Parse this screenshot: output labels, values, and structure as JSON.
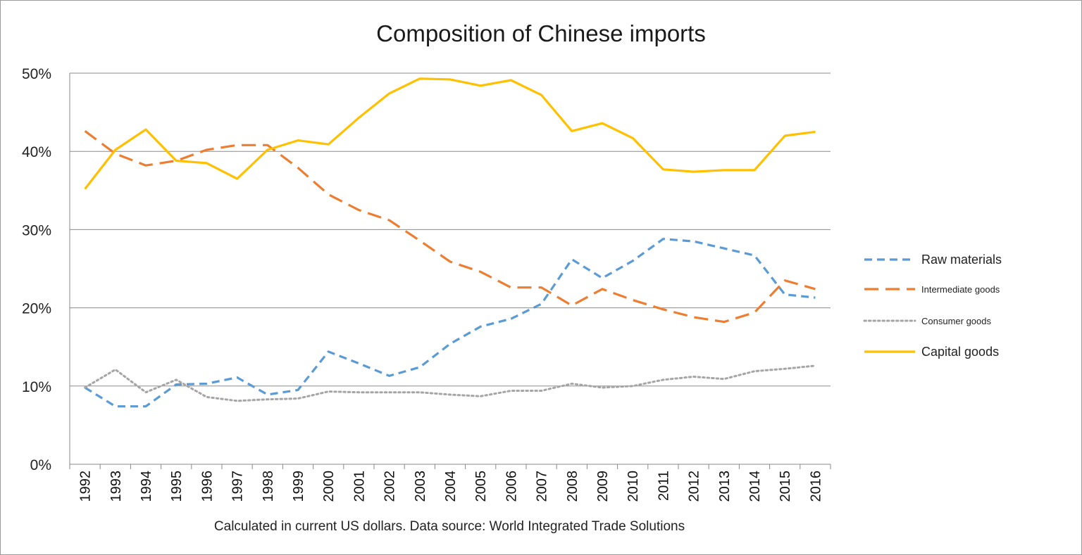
{
  "chart_data": {
    "type": "line",
    "title": "Composition of Chinese imports",
    "caption": "Calculated in current US dollars. Data source: World Integrated Trade Solutions",
    "xlabel": "",
    "ylabel": "",
    "x": [
      "1992",
      "1993",
      "1994",
      "1995",
      "1996",
      "1997",
      "1998",
      "1999",
      "2000",
      "2001",
      "2002",
      "2003",
      "2004",
      "2005",
      "2006",
      "2007",
      "2008",
      "2009",
      "2010",
      "2011",
      "2012",
      "2013",
      "2014",
      "2015",
      "2016"
    ],
    "ylim": [
      0,
      50
    ],
    "yticks": [
      0,
      10,
      20,
      30,
      40,
      50
    ],
    "ytick_labels": [
      "0%",
      "10%",
      "20%",
      "30%",
      "40%",
      "50%"
    ],
    "grid": "horizontal",
    "legend": "right",
    "series": [
      {
        "name": "Raw materials",
        "color": "#5b9bd5",
        "style": "dashed",
        "values": [
          9.8,
          7.4,
          7.4,
          10.2,
          10.3,
          11.1,
          8.9,
          9.5,
          14.4,
          12.9,
          11.3,
          12.4,
          15.4,
          17.6,
          18.6,
          20.5,
          26.2,
          23.8,
          26.0,
          28.8,
          28.5,
          27.6,
          26.7,
          21.7,
          21.3
        ]
      },
      {
        "name": "Intermediate goods",
        "color": "#ed7d31",
        "style": "long-dashed",
        "values": [
          42.6,
          39.7,
          38.2,
          38.8,
          40.2,
          40.8,
          40.8,
          37.9,
          34.5,
          32.5,
          31.2,
          28.6,
          25.9,
          24.6,
          22.6,
          22.6,
          20.3,
          22.4,
          21.0,
          19.8,
          18.8,
          18.2,
          19.4,
          23.5,
          22.4
        ]
      },
      {
        "name": "Consumer goods",
        "color": "#a5a5a5",
        "style": "dotted",
        "values": [
          9.8,
          12.1,
          9.2,
          10.8,
          8.6,
          8.1,
          8.3,
          8.4,
          9.3,
          9.2,
          9.2,
          9.2,
          8.9,
          8.7,
          9.4,
          9.4,
          10.3,
          9.8,
          10.0,
          10.8,
          11.2,
          10.9,
          11.9,
          12.2,
          12.6
        ]
      },
      {
        "name": "Capital goods",
        "color": "#ffc000",
        "style": "solid",
        "values": [
          35.2,
          40.2,
          42.8,
          38.8,
          38.5,
          36.5,
          40.2,
          41.4,
          40.9,
          44.3,
          47.4,
          49.3,
          49.2,
          48.4,
          49.1,
          47.2,
          42.6,
          43.6,
          41.7,
          37.7,
          37.4,
          37.6,
          37.6,
          42.0,
          42.5
        ]
      }
    ]
  }
}
